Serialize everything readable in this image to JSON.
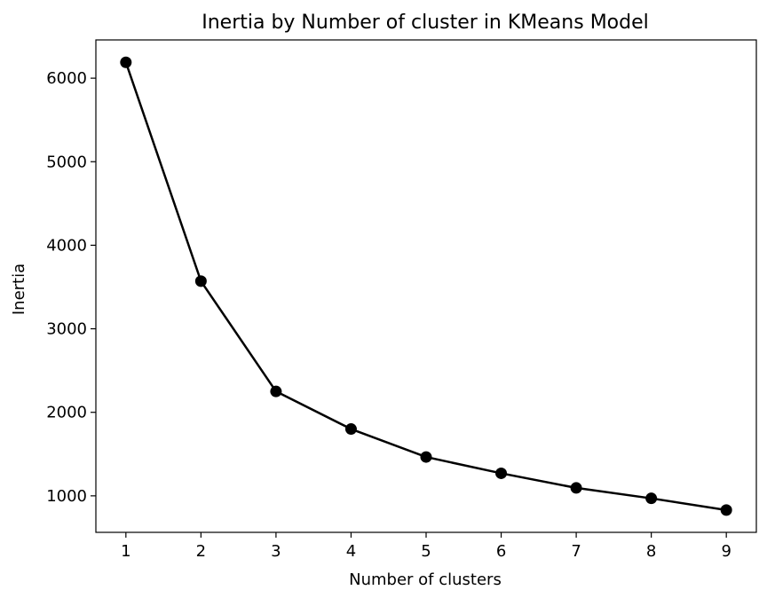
{
  "chart_data": {
    "type": "line",
    "title": "Inertia by Number of cluster in KMeans Model",
    "xlabel": "Number of clusters",
    "ylabel": "Inertia",
    "x": [
      1,
      2,
      3,
      4,
      5,
      6,
      7,
      8,
      9
    ],
    "series": [
      {
        "values": [
          6190,
          3570,
          2250,
          1800,
          1465,
          1270,
          1095,
          970,
          830
        ]
      }
    ],
    "xticks": [
      "1",
      "2",
      "3",
      "4",
      "5",
      "6",
      "7",
      "8",
      "9"
    ],
    "yticks": [
      "1000",
      "2000",
      "3000",
      "4000",
      "5000",
      "6000"
    ],
    "xlim": [
      0.6,
      9.4
    ],
    "ylim": [
      563,
      6458
    ],
    "grid": false,
    "marker": "circle",
    "colors": {
      "line": "#000000",
      "marker": "#000000",
      "axes": "#000000"
    }
  }
}
